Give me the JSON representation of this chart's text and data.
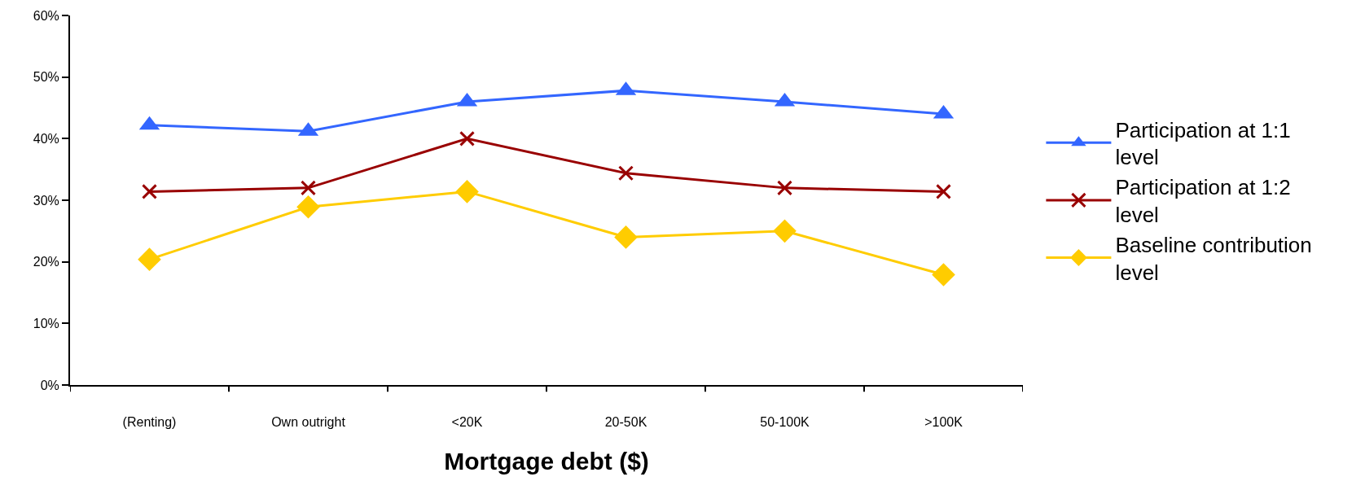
{
  "chart_data": {
    "type": "line",
    "xlabel": "Mortgage debt ($)",
    "categories": [
      "(Renting)",
      "Own outright",
      "<20K",
      "20-50K",
      "50-100K",
      ">100K"
    ],
    "series": [
      {
        "name": "Participation at 1:1 level",
        "color": "#3366ff",
        "marker": "triangle",
        "values": [
          42.2,
          41.2,
          46,
          47.8,
          46,
          44
        ]
      },
      {
        "name": "Participation at 1:2 level",
        "color": "#990000",
        "marker": "cross",
        "values": [
          31.4,
          32,
          40,
          34.4,
          32,
          31.4
        ]
      },
      {
        "name": "Baseline contribution level",
        "color": "#ffcc00",
        "marker": "diamond",
        "values": [
          20.4,
          28.9,
          31.4,
          24,
          25,
          17.9
        ]
      }
    ],
    "ylim": [
      0,
      60
    ],
    "yticks": [
      {
        "value": 0,
        "label": "0%"
      },
      {
        "value": 10,
        "label": "10%"
      },
      {
        "value": 20,
        "label": "20%"
      },
      {
        "value": 30,
        "label": "30%"
      },
      {
        "value": 40,
        "label": "40%"
      },
      {
        "value": 50,
        "label": "50%"
      },
      {
        "value": 60,
        "label": "60%"
      }
    ],
    "legend": "right",
    "line_style": "solid"
  }
}
